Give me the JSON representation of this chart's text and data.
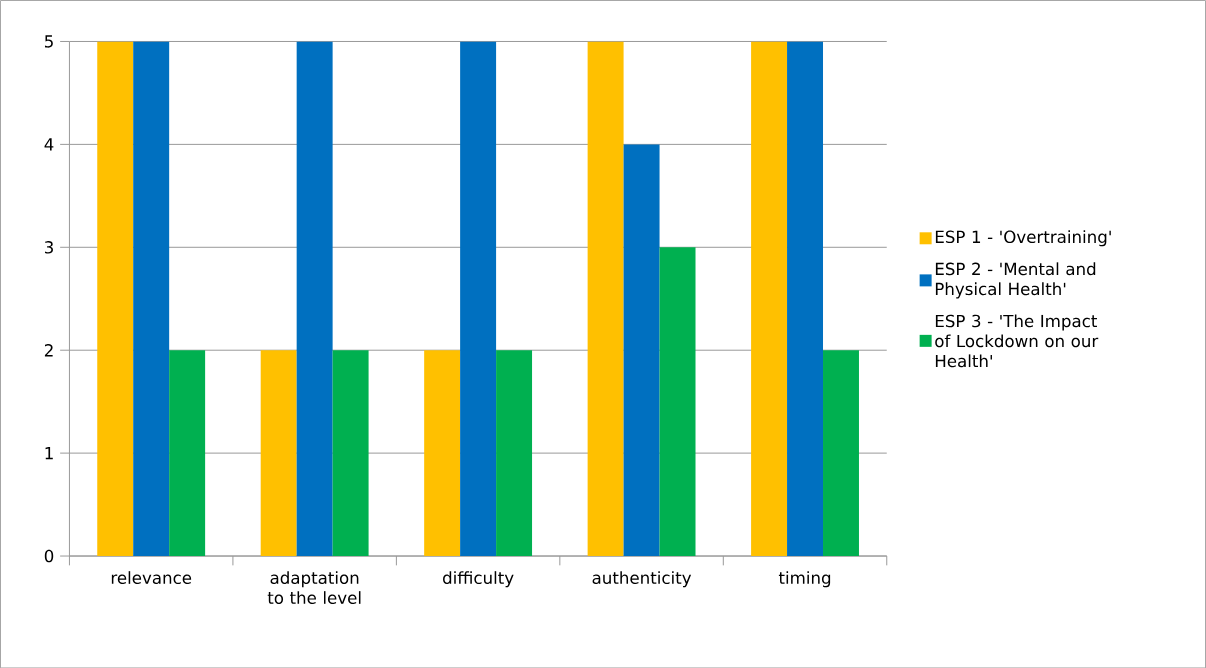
{
  "chart_data": {
    "type": "bar",
    "categories": [
      "relevance",
      "adaptation to the level",
      "difficulty",
      "authenticity",
      "timing"
    ],
    "series": [
      {
        "name": "ESP 1 - 'Overtraining'",
        "color": "#ffc000",
        "values": [
          5,
          2,
          2,
          5,
          5
        ]
      },
      {
        "name": "ESP 2 - 'Mental and Physical Health'",
        "color": "#0070c0",
        "values": [
          5,
          5,
          5,
          4,
          5
        ]
      },
      {
        "name": "ESP 3 - 'The Impact of Lockdown on our Health'",
        "color": "#00b050",
        "values": [
          2,
          2,
          2,
          3,
          2
        ]
      }
    ],
    "ylim": [
      0,
      5
    ],
    "yticks": [
      0,
      1,
      2,
      3,
      4,
      5
    ],
    "grid": "y",
    "legend": "right"
  }
}
